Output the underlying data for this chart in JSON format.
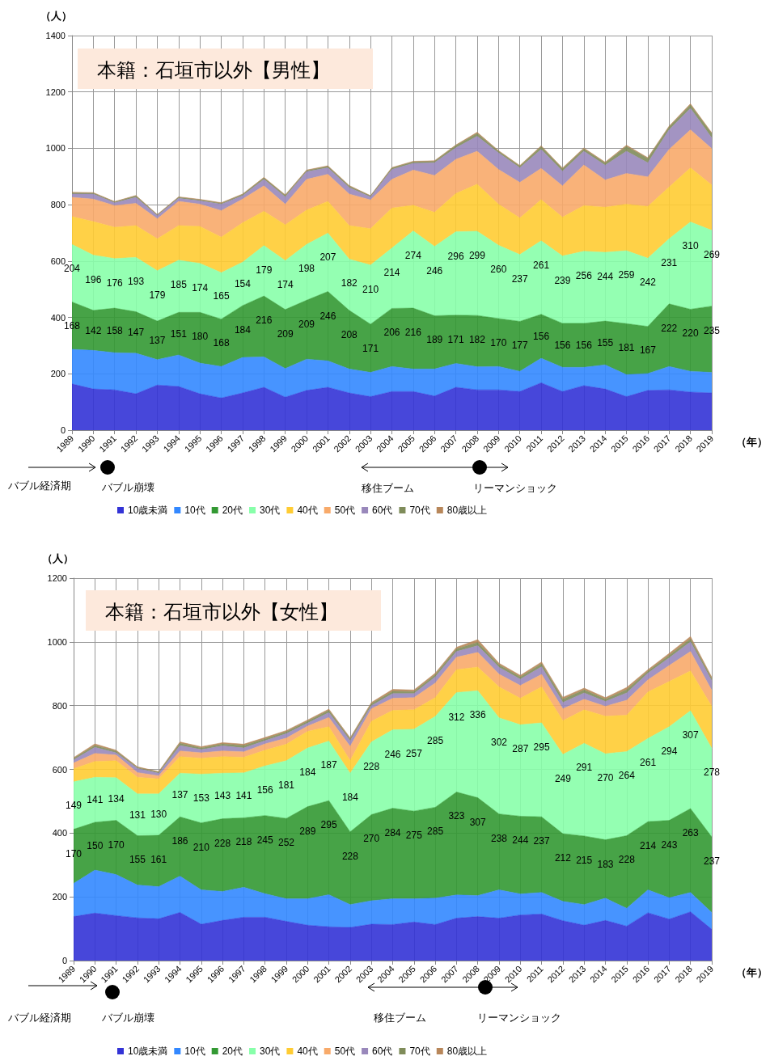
{
  "chart_data": [
    {
      "type": "area",
      "title": "本籍：石垣市以外【男性】",
      "xlabel": "（年）",
      "ylabel": "（人）",
      "stacked": true,
      "grid": true,
      "legend": "bottom",
      "ylim": [
        0,
        1400
      ],
      "yticks": [
        0,
        200,
        400,
        600,
        800,
        1000,
        1200,
        1400
      ],
      "annotations": [
        "バブル経済期",
        "バブル崩壊",
        "移住ブーム",
        "リーマンショック"
      ],
      "categories": [
        "1989",
        "1990",
        "1991",
        "1992",
        "1993",
        "1994",
        "1995",
        "1996",
        "1997",
        "1998",
        "1999",
        "2000",
        "2001",
        "2002",
        "2003",
        "2004",
        "2005",
        "2006",
        "2007",
        "2008",
        "2009",
        "2010",
        "2011",
        "2012",
        "2013",
        "2014",
        "2015",
        "2016",
        "2017",
        "2018",
        "2019"
      ],
      "series": [
        {
          "name": "10歳未満",
          "color": "#3333d6",
          "values": [
            164,
            146,
            143,
            129,
            160,
            155,
            129,
            114,
            132,
            152,
            117,
            141,
            152,
            132,
            119,
            137,
            137,
            121,
            152,
            143,
            143,
            137,
            168,
            137,
            158,
            146,
            119,
            141,
            143,
            135,
            132
          ]
        },
        {
          "name": "10代",
          "color": "#3388ff",
          "values": [
            123,
            137,
            132,
            144,
            90,
            112,
            109,
            112,
            126,
            108,
            102,
            111,
            94,
            85,
            86,
            89,
            80,
            96,
            85,
            82,
            83,
            72,
            87,
            86,
            65,
            86,
            78,
            60,
            83,
            74,
            73
          ]
        },
        {
          "name": "20代",
          "color": "#339933",
          "values": [
            168,
            142,
            158,
            147,
            137,
            151,
            180,
            168,
            184,
            216,
            209,
            209,
            246,
            208,
            171,
            206,
            216,
            189,
            171,
            182,
            170,
            177,
            156,
            156,
            156,
            155,
            181,
            167,
            222,
            220,
            235
          ],
          "value_labels": [
            "168",
            "142",
            "158",
            "147",
            "137",
            "151",
            "180",
            "168",
            "184",
            "216",
            "209",
            "209",
            "246",
            "208",
            "171",
            "206",
            "216",
            "189",
            "171",
            "182",
            "170",
            "177",
            "156",
            "156",
            "156",
            "155",
            "181",
            "167",
            "222",
            "220",
            "235"
          ]
        },
        {
          "name": "30代",
          "color": "#88ffaa",
          "values": [
            204,
            196,
            176,
            193,
            179,
            185,
            174,
            165,
            154,
            179,
            174,
            198,
            207,
            182,
            210,
            214,
            274,
            246,
            296,
            299,
            260,
            237,
            261,
            239,
            256,
            244,
            259,
            242,
            231,
            310,
            269
          ],
          "value_labels": [
            "204",
            "196",
            "176",
            "193",
            "179",
            "185",
            "174",
            "165",
            "154",
            "179",
            "174",
            "198",
            "207",
            "182",
            "210",
            "214",
            "274",
            "246",
            "296",
            "299",
            "260",
            "237",
            "261",
            "239",
            "256",
            "244",
            "259",
            "242",
            "231",
            "310",
            "269"
          ]
        },
        {
          "name": "40代",
          "color": "#ffcc33",
          "values": [
            99,
            119,
            111,
            113,
            113,
            123,
            131,
            126,
            140,
            122,
            127,
            122,
            113,
            119,
            129,
            142,
            91,
            121,
            136,
            167,
            146,
            130,
            146,
            138,
            162,
            160,
            165,
            184,
            184,
            192,
            161
          ]
        },
        {
          "name": "50代",
          "color": "#f8aa6a",
          "values": [
            68,
            80,
            77,
            79,
            71,
            86,
            79,
            94,
            84,
            90,
            73,
            109,
            96,
            112,
            102,
            102,
            125,
            131,
            121,
            117,
            123,
            126,
            111,
            111,
            144,
            97,
            109,
            105,
            133,
            135,
            129
          ]
        },
        {
          "name": "60代",
          "color": "#9988bb",
          "values": [
            12,
            18,
            10,
            21,
            12,
            11,
            12,
            23,
            12,
            23,
            26,
            27,
            23,
            23,
            11,
            35,
            24,
            45,
            41,
            53,
            59,
            52,
            67,
            52,
            49,
            52,
            79,
            50,
            70,
            76,
            38
          ]
        },
        {
          "name": "70代",
          "color": "#7f8c5a",
          "values": [
            4,
            3,
            3,
            5,
            2,
            3,
            3,
            3,
            4,
            5,
            5,
            4,
            5,
            5,
            3,
            5,
            5,
            5,
            8,
            10,
            6,
            6,
            10,
            8,
            8,
            8,
            17,
            15,
            10,
            12,
            15
          ]
        },
        {
          "name": "80歳以上",
          "color": "#b8875a",
          "values": [
            2,
            2,
            1,
            2,
            1,
            2,
            2,
            2,
            2,
            2,
            2,
            2,
            2,
            2,
            1,
            2,
            2,
            2,
            2,
            4,
            2,
            2,
            3,
            3,
            3,
            3,
            4,
            3,
            3,
            4,
            3
          ]
        }
      ]
    },
    {
      "type": "area",
      "title": "本籍：石垣市以外【女性】",
      "xlabel": "（年）",
      "ylabel": "（人）",
      "stacked": true,
      "grid": true,
      "legend": "bottom",
      "ylim": [
        0,
        1200
      ],
      "yticks": [
        0,
        200,
        400,
        600,
        800,
        1000,
        1200
      ],
      "annotations": [
        "バブル経済期",
        "バブル崩壊",
        "移住ブーム",
        "リーマンショック"
      ],
      "categories": [
        "1989",
        "1990",
        "1991",
        "1992",
        "1993",
        "1994",
        "1995",
        "1996",
        "1997",
        "1998",
        "1999",
        "2000",
        "2001",
        "2002",
        "2003",
        "2004",
        "2005",
        "2006",
        "2007",
        "2008",
        "2009",
        "2010",
        "2011",
        "2012",
        "2013",
        "2014",
        "2015",
        "2016",
        "2017",
        "2018",
        "2019"
      ],
      "series": [
        {
          "name": "10歳未満",
          "color": "#3333d6",
          "values": [
            138,
            149,
            141,
            134,
            131,
            151,
            114,
            126,
            136,
            136,
            123,
            111,
            106,
            104,
            114,
            113,
            121,
            113,
            133,
            138,
            133,
            143,
            146,
            125,
            111,
            126,
            108,
            150,
            130,
            153,
            98
          ]
        },
        {
          "name": "10代",
          "color": "#3388ff",
          "values": [
            104,
            135,
            129,
            103,
            101,
            114,
            108,
            91,
            94,
            74,
            71,
            83,
            101,
            72,
            74,
            81,
            73,
            83,
            73,
            66,
            89,
            66,
            68,
            61,
            65,
            70,
            56,
            72,
            67,
            61,
            53
          ]
        },
        {
          "name": "20代",
          "color": "#339933",
          "values": [
            170,
            150,
            170,
            155,
            161,
            186,
            210,
            228,
            218,
            245,
            252,
            289,
            295,
            228,
            270,
            284,
            275,
            285,
            323,
            307,
            238,
            244,
            237,
            212,
            215,
            183,
            228,
            214,
            243,
            263,
            237
          ],
          "value_labels": [
            "170",
            "150",
            "170",
            "155",
            "161",
            "186",
            "210",
            "228",
            "218",
            "245",
            "252",
            "289",
            "295",
            "228",
            "270",
            "284",
            "275",
            "285",
            "323",
            "307",
            "238",
            "244",
            "237",
            "212",
            "215",
            "183",
            "228",
            "214",
            "243",
            "263",
            "237"
          ]
        },
        {
          "name": "30代",
          "color": "#88ffaa",
          "values": [
            149,
            141,
            134,
            131,
            130,
            137,
            153,
            143,
            141,
            156,
            181,
            184,
            187,
            184,
            228,
            246,
            257,
            285,
            312,
            336,
            302,
            287,
            295,
            249,
            291,
            270,
            264,
            261,
            294,
            307,
            278
          ],
          "value_labels": [
            "149",
            "141",
            "134",
            "131",
            "130",
            "137",
            "153",
            "143",
            "141",
            "156",
            "181",
            "184",
            "187",
            "184",
            "228",
            "246",
            "257",
            "285",
            "312",
            "336",
            "302",
            "287",
            "295",
            "249",
            "291",
            "270",
            "264",
            "261",
            "294",
            "307",
            "278"
          ]
        },
        {
          "name": "40代",
          "color": "#ffcc33",
          "values": [
            41,
            50,
            53,
            52,
            47,
            52,
            50,
            52,
            49,
            49,
            52,
            52,
            45,
            40,
            65,
            61,
            61,
            59,
            72,
            74,
            97,
            83,
            113,
            106,
            105,
            118,
            114,
            146,
            142,
            125,
            132
          ]
        },
        {
          "name": "50代",
          "color": "#f8aa6a",
          "values": [
            18,
            25,
            18,
            15,
            10,
            18,
            17,
            18,
            17,
            20,
            19,
            17,
            29,
            44,
            39,
            38,
            38,
            46,
            39,
            46,
            40,
            40,
            39,
            37,
            33,
            31,
            47,
            38,
            50,
            61,
            50
          ]
        },
        {
          "name": "60代",
          "color": "#9988bb",
          "values": [
            10,
            19,
            7,
            13,
            8,
            17,
            10,
            16,
            12,
            10,
            14,
            9,
            15,
            18,
            10,
            15,
            13,
            19,
            18,
            21,
            21,
            20,
            24,
            20,
            20,
            15,
            23,
            21,
            24,
            30,
            30
          ]
        },
        {
          "name": "70代",
          "color": "#7f8c5a",
          "values": [
            4,
            6,
            5,
            3,
            3,
            7,
            5,
            6,
            8,
            6,
            6,
            6,
            7,
            5,
            6,
            7,
            6,
            7,
            8,
            10,
            8,
            7,
            9,
            10,
            9,
            7,
            10,
            6,
            8,
            9,
            6
          ]
        },
        {
          "name": "80歳以上",
          "color": "#b8875a",
          "values": [
            3,
            5,
            3,
            2,
            2,
            4,
            4,
            4,
            4,
            4,
            4,
            4,
            4,
            4,
            4,
            6,
            5,
            5,
            5,
            9,
            5,
            5,
            6,
            6,
            6,
            5,
            7,
            5,
            6,
            8,
            5
          ]
        }
      ]
    }
  ]
}
